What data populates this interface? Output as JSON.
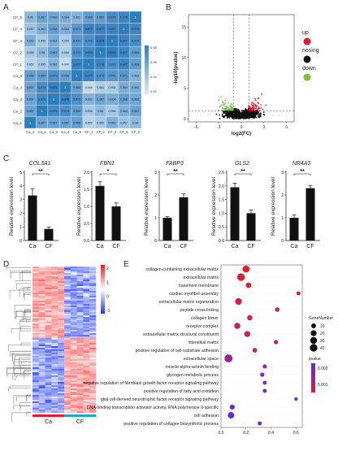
{
  "panels": {
    "A": {
      "letter": "A",
      "samples": [
        "CF_5",
        "CF_4",
        "CF_3",
        "CF_2",
        "CF_1",
        "Ca_5",
        "Ca_4",
        "Ca_3",
        "Ca_2",
        "Ca_1"
      ],
      "xlabels": [
        "Ca_1",
        "Ca_2",
        "Ca_3",
        "Ca_4",
        "Ca_5",
        "CF_1",
        "CF_2",
        "CF_3",
        "CF_4",
        "CF_5"
      ],
      "colorbar_ticks": [
        "0.98",
        "0.96",
        "0.94",
        "0.92"
      ],
      "matrix": [
        [
          "0.96",
          "0.967",
          "0.966",
          "0.964",
          "0.962",
          "0.969",
          "0.969",
          "0.974",
          "0.976",
          "1"
        ],
        [
          "0.957",
          "0.963",
          "0.968",
          "0.964",
          "0.971",
          "0.977",
          "0.977",
          "0.977",
          "1",
          "0.976"
        ],
        [
          "0.963",
          "0.955",
          "0.964",
          "0.954",
          "0.971",
          "0.973",
          "0.979",
          "1",
          "0.977",
          "0.974"
        ],
        [
          "0.955",
          "0.96",
          "0.967",
          "0.954",
          "0.973",
          "0.976",
          "1",
          "0.979",
          "0.977",
          "0.969"
        ],
        [
          "0.952",
          "0.955",
          "0.962",
          "0.949",
          "0.977",
          "1",
          "0.976",
          "0.973",
          "0.977",
          "0.969"
        ],
        [
          "0.968",
          "0.969",
          "0.973",
          "0.968",
          "1",
          "0.977",
          "0.973",
          "0.971",
          "0.971",
          "0.962"
        ],
        [
          "0.967",
          "0.974",
          "0.978",
          "1",
          "0.968",
          "0.949",
          "0.954",
          "0.954",
          "0.964",
          "0.964"
        ],
        [
          "0.967",
          "0.975",
          "1",
          "0.978",
          "0.973",
          "0.962",
          "0.967",
          "0.964",
          "0.968",
          "0.966"
        ],
        [
          "0.967",
          "1",
          "0.975",
          "0.974",
          "0.969",
          "0.955",
          "0.96",
          "0.955",
          "0.963",
          "0.967"
        ],
        [
          "1",
          "0.967",
          "0.967",
          "0.967",
          "0.968",
          "0.952",
          "0.955",
          "0.963",
          "0.957",
          "0.96"
        ]
      ]
    },
    "B": {
      "letter": "B",
      "ylabel": "-log10(pvalue)",
      "xlabel": "log2(FC)",
      "xticks": [
        "-6",
        "-3",
        "0",
        "3",
        "6"
      ],
      "yticks": [
        "0",
        "5",
        "10",
        "15"
      ],
      "legend": [
        {
          "label": "up",
          "color": "#e8192c"
        },
        {
          "label": "nosing",
          "color": "#111111"
        },
        {
          "label": "down",
          "color": "#7dc242"
        }
      ]
    },
    "C": {
      "letter": "C",
      "ylabel": "Relative expression level",
      "sig_labels": [
        "**",
        "*",
        "**",
        "**",
        "**"
      ],
      "group_labels": [
        "Ca",
        "CF"
      ]
    },
    "D": {
      "letter": "D",
      "colorbar_ticks": [
        "2",
        "1",
        "0",
        "-1"
      ],
      "group_labels": [
        "Ca",
        "CF"
      ],
      "group_colors": [
        "#e8192c",
        "#1aa9c9"
      ]
    },
    "E": {
      "letter": "E",
      "legend_size_title": "GeneNumber",
      "legend_sizes": [
        "10",
        "20",
        "30",
        "40"
      ],
      "legend_color_title": "pvalue",
      "legend_color_ticks": [
        "0.002",
        "0.001"
      ],
      "xticks": [
        "0.0",
        "0.2",
        "0.4",
        "0.6"
      ]
    }
  },
  "chart_data": [
    {
      "type": "bar",
      "title": "COL3A1",
      "categories": [
        "Ca",
        "CF"
      ],
      "values": [
        3.3,
        0.85
      ],
      "errors": [
        0.5,
        0.15
      ],
      "ylim": [
        0,
        5
      ],
      "yticks": [
        "0",
        "1",
        "2",
        "3",
        "4",
        "5"
      ]
    },
    {
      "type": "bar",
      "title": "FBN1",
      "categories": [
        "Ca",
        "CF"
      ],
      "values": [
        1.6,
        1.0
      ],
      "errors": [
        0.12,
        0.1
      ],
      "ylim": [
        0,
        2.0
      ],
      "yticks": [
        "0.0",
        "0.5",
        "1.0",
        "1.5",
        "2.0"
      ]
    },
    {
      "type": "bar",
      "title": "FABP3",
      "categories": [
        "Ca",
        "CF"
      ],
      "values": [
        1.0,
        1.9
      ],
      "errors": [
        0.05,
        0.15
      ],
      "ylim": [
        0,
        3
      ],
      "yticks": [
        "0",
        "1",
        "2",
        "3"
      ]
    },
    {
      "type": "bar",
      "title": "GLS2",
      "categories": [
        "Ca",
        "CF"
      ],
      "values": [
        1.95,
        1.0
      ],
      "errors": [
        0.15,
        0.12
      ],
      "ylim": [
        0,
        2.5
      ],
      "yticks": [
        "0.0",
        "0.5",
        "1.0",
        "1.5",
        "2.0",
        "2.5"
      ]
    },
    {
      "type": "bar",
      "title": "NR4A3",
      "categories": [
        "Ca",
        "CF"
      ],
      "values": [
        1.0,
        2.3
      ],
      "errors": [
        0.12,
        0.12
      ],
      "ylim": [
        0,
        3
      ],
      "yticks": [
        "0",
        "1",
        "2",
        "3"
      ]
    },
    {
      "type": "scatter",
      "title": "",
      "xlabel": "",
      "ylabel": "",
      "categories": [
        "collagen-containing extracellular matrix",
        "extracellular matrix",
        "basement membrane",
        "cardiac myofibril assembly",
        "extracellular matrix organization",
        "peptide cross-linking",
        "collagen trimer",
        "receptor complex",
        "extracellular matrix structural constituent",
        "interstitial matrix",
        "positive regulation of cell-substrate adhesion",
        "extracellular space",
        "muscle alpha-actinin binding",
        "glycogen metabolic process",
        "negative regulation of fibroblast growth factor receptor signaling pathway",
        "positive regulation of fatty acid oxidation",
        "glial cell-derived neurotrophic factor receptor signaling pathway",
        "DNA-binding transcription activator activity, RNA polymerase II-specific",
        "cell adhesion",
        "positive regulation of collagen biosynthetic process"
      ],
      "rich_factor": [
        0.2,
        0.16,
        0.22,
        0.62,
        0.14,
        0.45,
        0.23,
        0.13,
        0.21,
        0.44,
        0.27,
        0.06,
        0.35,
        0.33,
        0.35,
        0.35,
        0.6,
        0.09,
        0.08,
        0.31
      ],
      "gene_number": [
        32,
        40,
        16,
        5,
        28,
        8,
        14,
        22,
        20,
        7,
        9,
        45,
        6,
        7,
        5,
        5,
        3,
        12,
        25,
        5
      ],
      "pvalue": [
        0.0002,
        0.0003,
        0.0004,
        0.0005,
        0.0005,
        0.0006,
        0.0006,
        0.0007,
        0.0007,
        0.0008,
        0.0009,
        0.0012,
        0.0014,
        0.0016,
        0.0017,
        0.0018,
        0.0019,
        0.002,
        0.0021,
        0.0022
      ],
      "xlim": [
        0,
        0.65
      ]
    }
  ]
}
